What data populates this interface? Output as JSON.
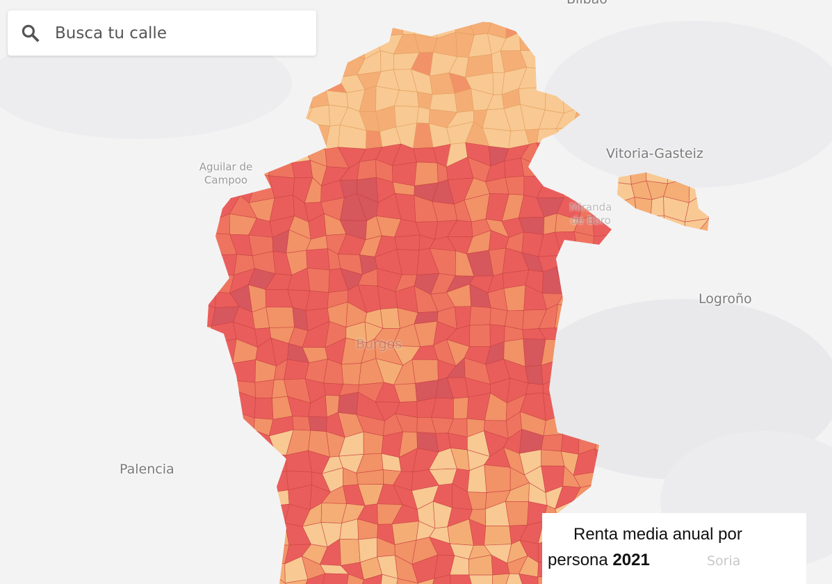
{
  "search": {
    "placeholder": "Busca tu calle",
    "icon": "search-icon"
  },
  "cities": {
    "bilbao": "Bilbao",
    "vitoria": "Vitoria-Gasteiz",
    "aguilar": "Aguilar de Campoo",
    "miranda": "Miranda de Ebro",
    "logrono": "Logroño",
    "burgos": "Burgos",
    "palencia": "Palencia",
    "soria": "Soria"
  },
  "legend": {
    "title_line1": "Renta media anual por",
    "title_line2": "persona",
    "year": "2021"
  },
  "palette": {
    "light": "#f9c68a",
    "light_orange": "#f5a96b",
    "orange": "#f28a5c",
    "red_orange": "#ee6a53",
    "red": "#e9524f",
    "dark": "#d44a50",
    "background": "#f3f3f4"
  }
}
